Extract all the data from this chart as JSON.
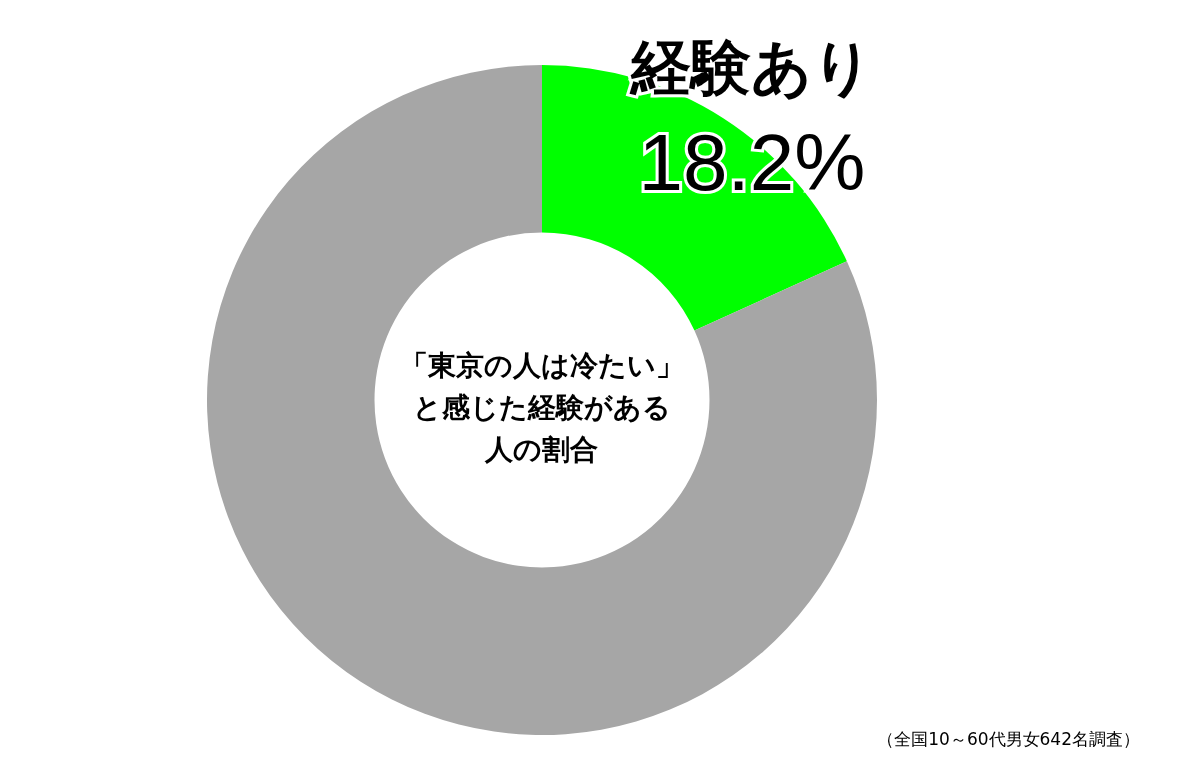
{
  "chart_data": {
    "type": "donut",
    "title": "「東京の人は冷たい」",
    "subtitle": "と感じた経験がある人の割合",
    "categories": [
      "経験あり",
      null
    ],
    "values": [
      18.2,
      81.8
    ],
    "colors": [
      "#00ff00",
      "#a6a6a6"
    ],
    "value_labels": [
      "18.2%",
      null
    ],
    "annotations": [
      "（全国10～60代男女642名調査）"
    ]
  }
}
